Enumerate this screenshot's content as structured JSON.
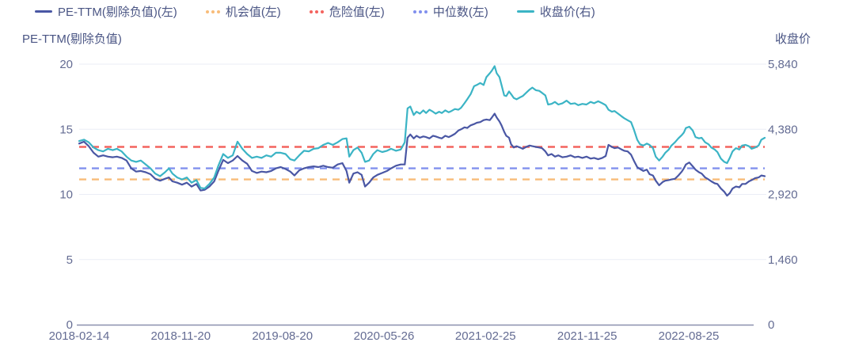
{
  "page": {
    "background": "#ffffff"
  },
  "chart_data": {
    "type": "line",
    "title": "",
    "ylabel_left": "PE-TTM(剔除负值)",
    "ylabel_right": "收盘价",
    "legend": [
      {
        "key": "pe-ttm",
        "label": "PE-TTM(剔除负值)(左)",
        "color": "#4A57A4",
        "marker": "line"
      },
      {
        "key": "opportunity",
        "label": "机会值(左)",
        "color": "#F8BC79",
        "marker": "dots"
      },
      {
        "key": "danger",
        "label": "危险值(左)",
        "color": "#F4635E",
        "marker": "dots"
      },
      {
        "key": "median",
        "label": "中位数(左)",
        "color": "#8190EE",
        "marker": "dots"
      },
      {
        "key": "close",
        "label": "收盘价(右)",
        "color": "#3BB4C5",
        "marker": "line"
      }
    ],
    "left_axis": {
      "min": 0,
      "max": 20,
      "ticks": [
        0,
        5,
        10,
        15,
        20
      ]
    },
    "right_axis": {
      "min": 0,
      "max": 5840,
      "ticks": [
        0,
        1460,
        2920,
        4380,
        5840
      ],
      "labels": [
        "0",
        "1,460",
        "2,920",
        "4,380",
        "5,840"
      ]
    },
    "x_ticks": [
      "2018-02-14",
      "2018-11-20",
      "2019-08-20",
      "2020-05-26",
      "2021-02-25",
      "2021-11-25",
      "2022-08-25"
    ],
    "reference_lines": [
      {
        "key": "opportunity",
        "label": "机会值",
        "axis": "left",
        "value": 11.15,
        "color": "#F8BC79"
      },
      {
        "key": "median",
        "label": "中位数",
        "axis": "left",
        "value": 12.0,
        "color": "#8190EE"
      },
      {
        "key": "danger",
        "label": "危险值",
        "axis": "left",
        "value": 13.65,
        "color": "#F4635E"
      }
    ],
    "t": [
      0,
      7,
      14,
      21,
      28,
      35,
      42,
      49,
      55,
      62,
      69,
      76,
      83,
      90,
      97,
      104,
      111,
      118,
      125,
      131,
      136,
      143,
      150,
      157,
      164,
      171,
      177,
      183,
      190,
      197,
      203,
      210,
      217,
      224,
      231,
      238,
      245,
      252,
      259,
      266,
      273,
      280,
      287,
      294,
      301,
      308,
      314,
      321,
      328,
      335,
      342,
      349,
      356,
      363,
      370,
      377,
      384,
      390,
      394,
      400,
      406,
      412,
      417,
      423,
      429,
      435,
      442,
      449,
      455,
      462,
      469,
      475,
      479,
      483,
      488,
      492,
      497,
      502,
      506,
      511,
      516,
      520,
      525,
      529,
      534,
      539,
      543,
      548,
      553,
      557,
      562,
      566,
      571,
      576,
      580,
      585,
      590,
      594,
      599,
      602,
      606,
      609,
      613,
      616,
      620,
      623,
      627,
      630,
      634,
      638,
      643,
      647,
      652,
      657,
      661,
      666,
      671,
      675,
      680,
      684,
      689,
      694,
      699,
      705,
      711,
      717,
      723,
      728,
      734,
      740,
      746,
      751,
      757,
      763,
      768,
      772,
      777,
      781,
      786,
      791,
      795,
      800,
      805,
      809,
      814,
      818,
      823,
      828,
      832,
      837,
      841,
      846,
      851,
      855,
      860,
      864,
      869,
      874,
      879,
      882,
      885,
      890,
      895,
      899,
      904,
      908,
      913,
      918,
      922,
      927,
      931,
      936,
      941,
      945,
      949,
      953,
      958,
      963,
      967,
      972,
      977,
      981,
      986,
      991,
      995,
      1000
    ],
    "series": [
      {
        "key": "pe-ttm",
        "name": "PE-TTM(剔除负值)",
        "axis": "left",
        "color": "#4A57A4",
        "values": [
          13.9,
          14.05,
          13.7,
          13.2,
          12.9,
          13.0,
          12.9,
          12.85,
          12.9,
          12.8,
          12.6,
          12.0,
          11.75,
          11.8,
          11.7,
          11.55,
          11.2,
          11.05,
          11.2,
          11.3,
          11.0,
          10.9,
          10.75,
          10.9,
          10.6,
          10.8,
          10.3,
          10.35,
          10.6,
          11.0,
          11.8,
          12.65,
          12.4,
          12.6,
          12.95,
          12.6,
          12.35,
          11.8,
          11.65,
          11.75,
          11.7,
          11.8,
          12.0,
          12.1,
          11.95,
          11.75,
          11.45,
          11.85,
          12.0,
          12.1,
          12.15,
          12.1,
          12.2,
          12.1,
          12.05,
          12.3,
          12.4,
          11.8,
          10.9,
          11.6,
          11.7,
          11.5,
          10.6,
          10.9,
          11.3,
          11.5,
          11.65,
          11.8,
          12.0,
          12.2,
          12.3,
          12.3,
          14.35,
          14.6,
          14.3,
          14.5,
          14.35,
          14.45,
          14.4,
          14.3,
          14.5,
          14.45,
          14.35,
          14.3,
          14.5,
          14.4,
          14.5,
          14.65,
          14.9,
          15.0,
          15.15,
          15.1,
          15.3,
          15.4,
          15.5,
          15.55,
          15.7,
          15.75,
          15.7,
          15.9,
          16.2,
          15.9,
          15.6,
          15.3,
          14.8,
          14.5,
          14.35,
          13.85,
          13.6,
          13.7,
          13.6,
          13.5,
          13.65,
          13.75,
          13.7,
          13.65,
          13.6,
          13.55,
          13.3,
          13.0,
          13.1,
          12.9,
          13.0,
          12.85,
          12.9,
          13.0,
          12.85,
          12.9,
          12.8,
          12.9,
          12.75,
          12.8,
          12.7,
          12.8,
          12.95,
          13.8,
          13.65,
          13.55,
          13.6,
          13.45,
          13.35,
          13.3,
          13.05,
          12.6,
          12.1,
          11.95,
          11.8,
          11.9,
          11.55,
          11.45,
          11.05,
          10.7,
          10.95,
          11.05,
          11.1,
          11.15,
          11.2,
          11.45,
          11.75,
          12.0,
          12.3,
          12.45,
          12.15,
          11.9,
          11.7,
          11.6,
          11.3,
          11.15,
          11.0,
          10.85,
          10.8,
          10.45,
          10.2,
          9.9,
          10.1,
          10.45,
          10.6,
          10.55,
          10.8,
          10.8,
          11.0,
          11.1,
          11.25,
          11.3,
          11.45,
          11.4
        ]
      },
      {
        "key": "close",
        "name": "收盘价",
        "axis": "right",
        "color": "#3BB4C5",
        "values": [
          4117,
          4146,
          4088,
          3971,
          3913,
          3884,
          3942,
          3913,
          3942,
          3884,
          3767,
          3679,
          3650,
          3679,
          3592,
          3504,
          3387,
          3329,
          3416,
          3504,
          3387,
          3300,
          3256,
          3300,
          3183,
          3241,
          3066,
          3051,
          3154,
          3300,
          3562,
          3825,
          3738,
          3796,
          4103,
          3942,
          3825,
          3738,
          3767,
          3738,
          3796,
          3767,
          3854,
          3854,
          3825,
          3708,
          3679,
          3796,
          3898,
          3884,
          3942,
          3957,
          4030,
          4073,
          4030,
          4088,
          4161,
          4176,
          3767,
          3913,
          3971,
          3854,
          3650,
          3679,
          3825,
          3913,
          3869,
          3898,
          3942,
          3898,
          3927,
          4088,
          4847,
          4891,
          4701,
          4774,
          4730,
          4803,
          4745,
          4818,
          4774,
          4730,
          4774,
          4745,
          4803,
          4760,
          4789,
          4833,
          4818,
          4862,
          4964,
          5052,
          5168,
          5344,
          5373,
          5417,
          5373,
          5548,
          5636,
          5694,
          5796,
          5636,
          5548,
          5373,
          5139,
          5125,
          5227,
          5168,
          5081,
          5052,
          5095,
          5125,
          5198,
          5271,
          5314,
          5256,
          5241,
          5198,
          5139,
          4935,
          4949,
          4993,
          4935,
          4964,
          5022,
          4949,
          4964,
          4920,
          4949,
          4935,
          4993,
          4964,
          5008,
          4964,
          4920,
          4818,
          4774,
          4789,
          4730,
          4672,
          4628,
          4584,
          4541,
          4380,
          4146,
          4044,
          4015,
          4059,
          4030,
          3957,
          3767,
          3679,
          3767,
          3854,
          3927,
          4015,
          4088,
          4176,
          4249,
          4307,
          4409,
          4438,
          4351,
          4205,
          4176,
          4190,
          4088,
          4044,
          3971,
          3927,
          3869,
          3723,
          3650,
          3621,
          3738,
          3884,
          3957,
          3927,
          4015,
          4030,
          4000,
          3942,
          3971,
          4015,
          4146,
          4190
        ]
      }
    ],
    "style": {
      "grid_color": "#EBEDF6",
      "axis_line_color": "#8B90AE",
      "tick_text_color": "#646C93"
    }
  }
}
